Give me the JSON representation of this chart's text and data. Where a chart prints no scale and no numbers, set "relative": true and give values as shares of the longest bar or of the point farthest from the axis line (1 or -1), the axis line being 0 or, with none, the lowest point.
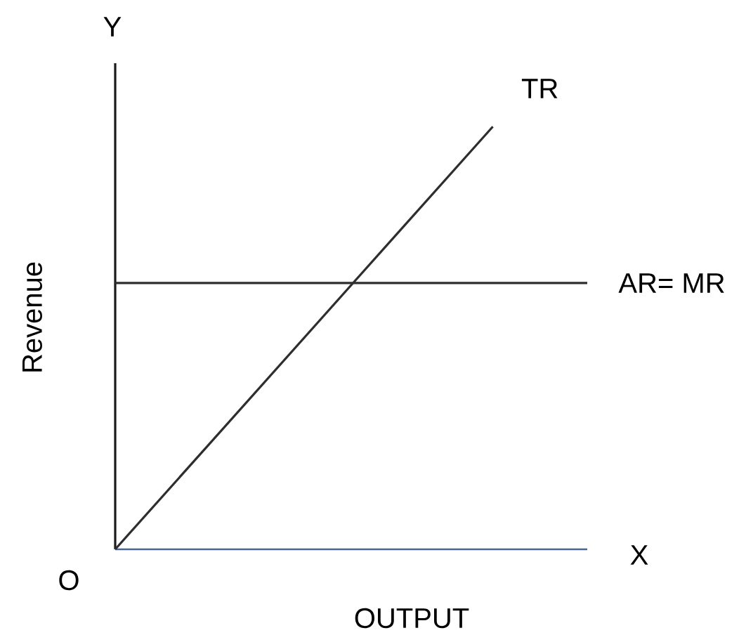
{
  "chart_data": {
    "type": "line",
    "xlabel": "OUTPUT",
    "ylabel": "Revenue",
    "relative": true,
    "categories": [
      null,
      null,
      null,
      null,
      null,
      null
    ],
    "series": [
      {
        "name": "TR",
        "color": "#2e2e2e",
        "values": [
          0,
          0.25,
          0.5,
          0.75,
          1,
          null
        ]
      },
      {
        "name": "AR= MR",
        "color": "#2e2e2e",
        "values": [
          0.63,
          0.63,
          0.63,
          0.63,
          0.63,
          0.63
        ]
      }
    ],
    "annotations": [
      "Y",
      "X",
      "O"
    ]
  }
}
